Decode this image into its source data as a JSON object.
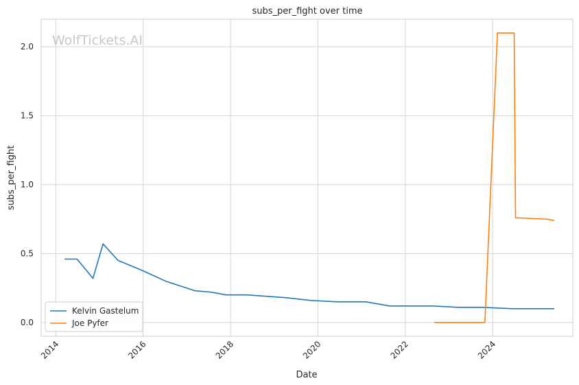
{
  "chart_data": {
    "type": "line",
    "title": "subs_per_fight over time",
    "xlabel": "Date",
    "ylabel": "subs_per_fight",
    "watermark": "WolfTickets.AI",
    "xlim": [
      "2013-09-01",
      "2025-11-01"
    ],
    "ylim": [
      -0.1,
      2.2
    ],
    "x_ticks": [
      {
        "date": "2014-01-01",
        "label": "2014"
      },
      {
        "date": "2016-01-01",
        "label": "2016"
      },
      {
        "date": "2018-01-01",
        "label": "2018"
      },
      {
        "date": "2020-01-01",
        "label": "2020"
      },
      {
        "date": "2022-01-01",
        "label": "2022"
      },
      {
        "date": "2024-01-01",
        "label": "2024"
      }
    ],
    "y_ticks": [
      {
        "value": 0.0,
        "label": "0.0"
      },
      {
        "value": 0.5,
        "label": "0.5"
      },
      {
        "value": 1.0,
        "label": "1.0"
      },
      {
        "value": 1.5,
        "label": "1.5"
      },
      {
        "value": 2.0,
        "label": "2.0"
      }
    ],
    "grid": true,
    "legend_position": "lower-left",
    "series": [
      {
        "name": "Kelvin Gastelum",
        "color": "#1f77b4",
        "points": [
          {
            "x": "2014-03-15",
            "y": 0.46
          },
          {
            "x": "2014-06-28",
            "y": 0.46
          },
          {
            "x": "2014-11-08",
            "y": 0.32
          },
          {
            "x": "2015-01-31",
            "y": 0.57
          },
          {
            "x": "2015-06-06",
            "y": 0.45
          },
          {
            "x": "2015-12-19",
            "y": 0.38
          },
          {
            "x": "2016-07-08",
            "y": 0.3
          },
          {
            "x": "2017-03-11",
            "y": 0.23
          },
          {
            "x": "2017-07-22",
            "y": 0.22
          },
          {
            "x": "2017-11-25",
            "y": 0.2
          },
          {
            "x": "2018-05-19",
            "y": 0.2
          },
          {
            "x": "2019-04-13",
            "y": 0.18
          },
          {
            "x": "2019-11-02",
            "y": 0.16
          },
          {
            "x": "2020-06-13",
            "y": 0.15
          },
          {
            "x": "2021-02-06",
            "y": 0.15
          },
          {
            "x": "2021-08-21",
            "y": 0.12
          },
          {
            "x": "2022-08-13",
            "y": 0.12
          },
          {
            "x": "2023-03-18",
            "y": 0.11
          },
          {
            "x": "2023-09-30",
            "y": 0.11
          },
          {
            "x": "2024-06-15",
            "y": 0.1
          },
          {
            "x": "2025-05-31",
            "y": 0.1
          }
        ]
      },
      {
        "name": "Joe Pyfer",
        "color": "#ff7f0e",
        "points": [
          {
            "x": "2022-08-31",
            "y": 0.0
          },
          {
            "x": "2023-10-28",
            "y": 0.0
          },
          {
            "x": "2024-02-10",
            "y": 2.1
          },
          {
            "x": "2024-06-29",
            "y": 2.1
          },
          {
            "x": "2024-07-10",
            "y": 0.76
          },
          {
            "x": "2025-03-29",
            "y": 0.75
          },
          {
            "x": "2025-05-31",
            "y": 0.74
          }
        ]
      }
    ]
  }
}
